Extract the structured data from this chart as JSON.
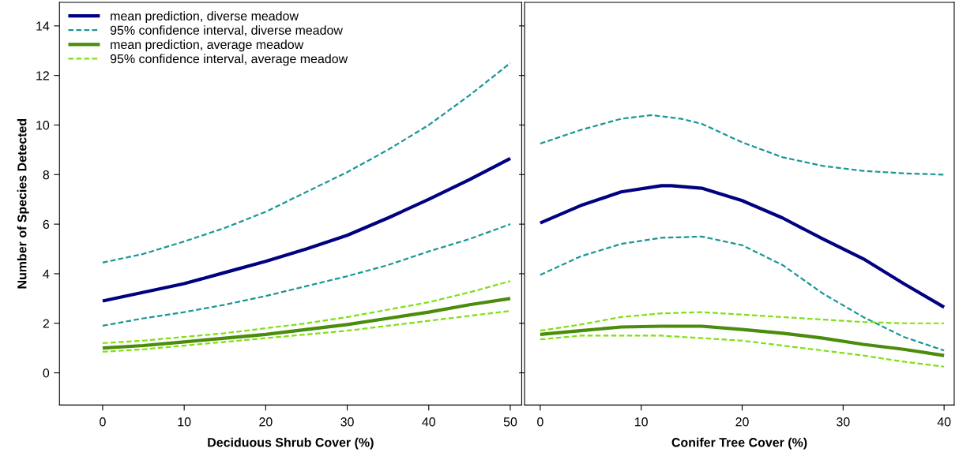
{
  "chart_data": [
    {
      "type": "line",
      "xlabel": "Deciduous Shrub Cover (%)",
      "ylabel": "Number of Species Detected",
      "xlim": [
        -5.3,
        51.4
      ],
      "xticks": [
        0,
        10,
        20,
        30,
        40,
        50
      ],
      "ylim": [
        -1.3,
        14.95
      ],
      "yticks": [
        0,
        2,
        4,
        6,
        8,
        10,
        12,
        14
      ],
      "legend": "top left",
      "grid": false,
      "series": [
        {
          "name": "mean prediction, diverse meadow",
          "color": "#000080",
          "line_style": "solid",
          "x": [
            0,
            5,
            10,
            15,
            20,
            25,
            30,
            35,
            40,
            45,
            50
          ],
          "values": [
            2.9,
            3.25,
            3.6,
            4.05,
            4.5,
            5.0,
            5.55,
            6.25,
            7.0,
            7.8,
            8.65
          ]
        },
        {
          "name": "95% confidence interval, diverse meadow",
          "color": "#1a9696",
          "line_style": "dashed",
          "x": [
            0,
            5,
            10,
            15,
            20,
            25,
            30,
            35,
            40,
            45,
            50
          ],
          "values": [
            4.45,
            4.8,
            5.3,
            5.85,
            6.5,
            7.3,
            8.1,
            9.0,
            10.0,
            11.2,
            12.5
          ]
        },
        {
          "color": "#1a9696",
          "line_style": "dashed",
          "x": [
            0,
            5,
            10,
            15,
            20,
            25,
            30,
            35,
            40,
            45,
            50
          ],
          "values": [
            1.9,
            2.2,
            2.45,
            2.75,
            3.1,
            3.5,
            3.9,
            4.35,
            4.9,
            5.4,
            6.0
          ]
        },
        {
          "name": "mean prediction, average meadow",
          "color": "#4a8c0c",
          "line_style": "solid",
          "x": [
            0,
            5,
            10,
            15,
            20,
            25,
            30,
            35,
            40,
            45,
            50
          ],
          "values": [
            1.0,
            1.1,
            1.25,
            1.4,
            1.55,
            1.75,
            1.95,
            2.2,
            2.45,
            2.75,
            3.0
          ]
        },
        {
          "name": "95% confidence interval, average meadow",
          "color": "#80e010",
          "line_style": "dashed",
          "x": [
            0,
            5,
            10,
            15,
            20,
            25,
            30,
            35,
            40,
            45,
            50
          ],
          "values": [
            1.2,
            1.3,
            1.45,
            1.6,
            1.8,
            2.0,
            2.25,
            2.55,
            2.85,
            3.25,
            3.7
          ]
        },
        {
          "color": "#80e010",
          "line_style": "dashed",
          "x": [
            0,
            5,
            10,
            15,
            20,
            25,
            30,
            35,
            40,
            45,
            50
          ],
          "values": [
            0.85,
            0.95,
            1.1,
            1.25,
            1.4,
            1.55,
            1.7,
            1.9,
            2.1,
            2.3,
            2.5
          ]
        }
      ]
    },
    {
      "type": "line",
      "xlabel": "Conifer Tree Cover (%)",
      "xlim": [
        -1.55,
        41.0
      ],
      "xticks": [
        0,
        10,
        20,
        30,
        40
      ],
      "ylim": [
        -1.3,
        14.95
      ],
      "yticks": [
        0,
        2,
        4,
        6,
        8,
        10,
        12,
        14
      ],
      "tick_labels": "x",
      "grid": false,
      "series": [
        {
          "color": "#000080",
          "line_style": "solid",
          "x": [
            0,
            4,
            8,
            12,
            13,
            16,
            20,
            24,
            28,
            32,
            36,
            40
          ],
          "values": [
            6.05,
            6.75,
            7.3,
            7.55,
            7.55,
            7.45,
            6.95,
            6.25,
            5.4,
            4.6,
            3.6,
            2.65
          ]
        },
        {
          "color": "#1a9696",
          "line_style": "dashed",
          "x": [
            0,
            4,
            8,
            11,
            14,
            16,
            20,
            24,
            28,
            32,
            36,
            40
          ],
          "values": [
            9.25,
            9.8,
            10.25,
            10.4,
            10.25,
            10.05,
            9.3,
            8.7,
            8.35,
            8.15,
            8.05,
            8.0
          ]
        },
        {
          "color": "#1a9696",
          "line_style": "dashed",
          "x": [
            0,
            4,
            8,
            12,
            16,
            20,
            24,
            28,
            32,
            36,
            40
          ],
          "values": [
            3.95,
            4.7,
            5.2,
            5.45,
            5.5,
            5.15,
            4.35,
            3.2,
            2.25,
            1.45,
            0.9
          ]
        },
        {
          "color": "#4a8c0c",
          "line_style": "solid",
          "x": [
            0,
            4,
            8,
            12,
            16,
            20,
            24,
            28,
            32,
            36,
            40
          ],
          "values": [
            1.55,
            1.7,
            1.85,
            1.88,
            1.88,
            1.75,
            1.6,
            1.4,
            1.15,
            0.95,
            0.7
          ]
        },
        {
          "color": "#80e010",
          "line_style": "dashed",
          "x": [
            0,
            4,
            8,
            12,
            16,
            20,
            24,
            28,
            32,
            36,
            40
          ],
          "values": [
            1.7,
            1.95,
            2.25,
            2.4,
            2.45,
            2.35,
            2.25,
            2.15,
            2.05,
            2.0,
            2.0
          ]
        },
        {
          "color": "#80e010",
          "line_style": "dashed",
          "x": [
            0,
            4,
            8,
            12,
            16,
            20,
            24,
            28,
            32,
            36,
            40
          ],
          "values": [
            1.35,
            1.5,
            1.5,
            1.5,
            1.4,
            1.3,
            1.1,
            0.9,
            0.7,
            0.45,
            0.25
          ]
        }
      ]
    }
  ]
}
